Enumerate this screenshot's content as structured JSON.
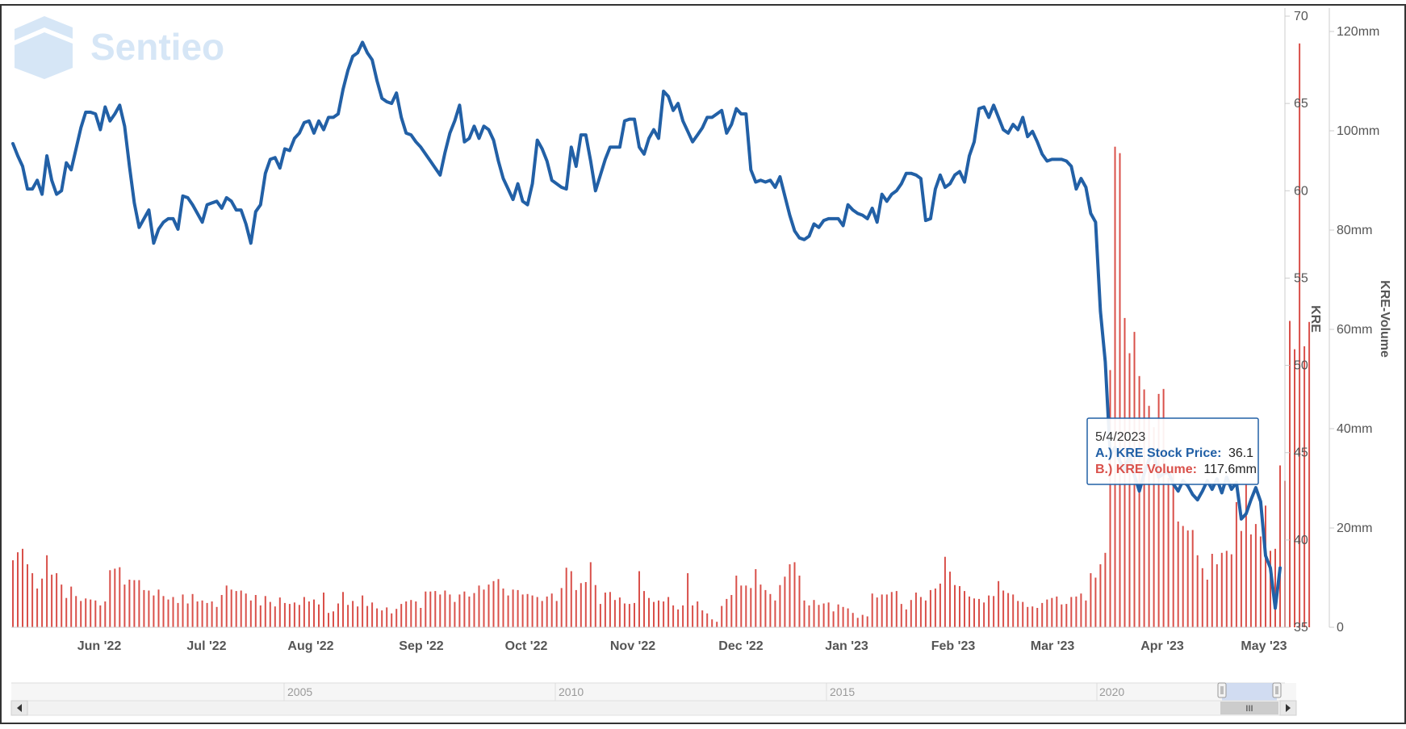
{
  "logo": {
    "text": "Sentieo"
  },
  "colors": {
    "price": "#2260a6",
    "volume": "#d9504a",
    "axis_text": "#555555",
    "grid": "#eeeeee",
    "nav_fill": "#c8d6f0",
    "logo": "#d6e6f6"
  },
  "tooltip": {
    "date": "5/4/2023",
    "a_label": "A.) KRE Stock Price:",
    "a_value": "36.1",
    "b_label": "B.) KRE Volume:",
    "b_value": "117.6mm"
  },
  "navigator": {
    "years": [
      "2005",
      "2010",
      "2015",
      "2020"
    ],
    "scroll_label": "III"
  },
  "chart_data": {
    "type": "line",
    "x_tick_labels": [
      "Jun '22",
      "Jul '22",
      "Aug '22",
      "Sep '22",
      "Oct '22",
      "Nov '22",
      "Dec '22",
      "Jan '23",
      "Feb '23",
      "Mar '23",
      "Apr '23",
      "May '23"
    ],
    "y_left": {
      "label": "KRE",
      "ticks": [
        "35",
        "40",
        "45",
        "50",
        "55",
        "60",
        "65",
        "70"
      ],
      "range": [
        35,
        70
      ]
    },
    "y_right": {
      "label": "KRE-Volume",
      "ticks": [
        "0",
        "20mm",
        "40mm",
        "60mm",
        "80mm",
        "100mm",
        "120mm"
      ],
      "range": [
        0,
        120
      ]
    },
    "series": [
      {
        "name": "A.) KRE Stock Price",
        "kind": "line",
        "values": [
          62.7,
          62.0,
          61.4,
          60.1,
          60.1,
          60.6,
          59.8,
          62.0,
          60.6,
          59.8,
          60.0,
          61.6,
          61.2,
          62.4,
          63.6,
          64.5,
          64.5,
          64.4,
          63.5,
          64.8,
          64.0,
          64.4,
          64.9,
          63.7,
          61.4,
          59.3,
          57.9,
          58.4,
          58.9,
          57.0,
          57.8,
          58.2,
          58.4,
          58.4,
          57.8,
          59.7,
          59.6,
          59.2,
          58.7,
          58.2,
          59.2,
          59.3,
          59.4,
          59.0,
          59.6,
          59.4,
          58.9,
          58.9,
          58.1,
          57.0,
          58.8,
          59.2,
          61.0,
          61.8,
          61.9,
          61.3,
          62.4,
          62.3,
          63.0,
          63.3,
          63.9,
          64.0,
          63.3,
          64.0,
          63.5,
          64.2,
          64.2,
          64.4,
          65.8,
          66.9,
          67.7,
          67.9,
          68.5,
          67.9,
          67.5,
          66.3,
          65.3,
          65.1,
          65.0,
          65.6,
          64.2,
          63.3,
          63.2,
          62.8,
          62.5,
          62.1,
          61.7,
          61.3,
          60.9,
          62.2,
          63.3,
          64.0,
          64.9,
          62.8,
          63.0,
          63.7,
          63.0,
          63.7,
          63.5,
          62.9,
          61.7,
          60.7,
          60.1,
          59.5,
          60.4,
          59.4,
          59.2,
          60.4,
          62.9,
          62.4,
          61.7,
          60.6,
          60.4,
          60.2,
          60.1,
          62.5,
          61.4,
          63.2,
          63.2,
          61.7,
          60.0,
          60.9,
          61.8,
          62.5,
          62.5,
          62.5,
          64.0,
          64.1,
          64.1,
          62.5,
          62.1,
          63.0,
          63.5,
          63.0,
          65.7,
          65.4,
          64.6,
          65.0,
          64.0,
          63.4,
          62.8,
          63.2,
          63.6,
          64.2,
          64.2,
          64.4,
          64.6,
          63.3,
          63.8,
          64.7,
          64.4,
          64.4,
          61.2,
          60.5,
          60.6,
          60.5,
          60.6,
          60.2,
          60.8,
          59.7,
          58.6,
          57.7,
          57.3,
          57.2,
          57.4,
          58.1,
          57.9,
          58.3,
          58.4,
          58.4,
          58.4,
          58.0,
          59.2,
          58.9,
          58.7,
          58.6,
          58.4,
          59.0,
          58.2,
          59.8,
          59.4,
          59.8,
          60.0,
          60.4,
          61.0,
          61.0,
          60.9,
          60.7,
          58.3,
          58.4,
          60.1,
          60.9,
          60.2,
          60.4,
          60.9,
          61.1,
          60.5,
          62.0,
          62.8,
          64.7,
          64.8,
          64.2,
          64.9,
          64.2,
          63.5,
          63.3,
          63.8,
          63.5,
          64.2,
          63.1,
          63.4,
          62.8,
          62.1,
          61.7,
          61.8,
          61.8,
          61.8,
          61.7,
          61.4,
          60.1,
          60.7,
          60.2,
          58.7,
          58.2,
          53.1,
          50.2,
          44.9,
          45.3,
          44.5,
          44.0,
          44.9,
          43.7,
          42.8,
          43.8,
          44.6,
          45.0,
          43.6,
          43.8,
          43.9,
          43.2,
          42.8,
          43.4,
          43.1,
          42.6,
          42.3,
          42.8,
          43.4,
          42.9,
          43.5,
          42.7,
          43.6,
          42.9,
          43.3,
          41.2,
          41.5,
          42.3,
          43.0,
          42.2,
          39.1,
          38.4,
          36.1,
          38.4
        ]
      },
      {
        "name": "B.) KRE Volume",
        "kind": "bar",
        "values": [
          13.5,
          15.1,
          15.8,
          12.7,
          10.9,
          7.8,
          9.8,
          14.5,
          10.6,
          10.9,
          8.6,
          5.9,
          8.2,
          6.3,
          5.3,
          5.8,
          5.6,
          5.4,
          4.4,
          5.2,
          11.5,
          11.8,
          12.1,
          8.6,
          9.6,
          9.5,
          9.5,
          7.5,
          7.4,
          6.4,
          7.6,
          6.3,
          5.6,
          6.1,
          4.9,
          6.6,
          4.8,
          6.7,
          5.2,
          5.4,
          4.9,
          5.2,
          4.1,
          6.5,
          8.4,
          7.6,
          7.3,
          7.4,
          6.8,
          5.4,
          6.5,
          4.4,
          6.3,
          5.1,
          4.2,
          6.0,
          4.9,
          4.7,
          5.0,
          4.5,
          6.1,
          5.2,
          5.6,
          4.6,
          7.0,
          2.9,
          3.2,
          4.8,
          7.1,
          4.5,
          5.3,
          4.2,
          6.4,
          4.3,
          5.0,
          3.8,
          3.4,
          4.0,
          2.8,
          3.7,
          4.7,
          5.2,
          5.5,
          5.2,
          3.9,
          7.2,
          7.2,
          7.3,
          6.6,
          7.4,
          6.6,
          5.1,
          6.6,
          7.2,
          6.2,
          6.9,
          8.4,
          7.6,
          8.6,
          9.3,
          9.7,
          7.8,
          6.4,
          7.6,
          7.5,
          6.6,
          6.7,
          6.4,
          6.1,
          5.3,
          6.2,
          6.8,
          5.3,
          7.9,
          12.0,
          11.3,
          7.5,
          8.9,
          9.1,
          13.1,
          8.5,
          4.7,
          7.0,
          7.1,
          5.5,
          6.0,
          4.8,
          4.7,
          4.9,
          11.3,
          7.3,
          5.9,
          5.1,
          5.4,
          5.2,
          6.1,
          4.4,
          3.6,
          4.4,
          10.9,
          4.4,
          5.2,
          3.4,
          2.8,
          1.6,
          1.1,
          4.3,
          5.7,
          6.5,
          10.4,
          8.4,
          8.4,
          7.9,
          11.7,
          8.6,
          7.5,
          6.7,
          5.4,
          8.5,
          10.2,
          12.7,
          13.1,
          10.4,
          5.4,
          4.4,
          5.5,
          4.5,
          4.8,
          5.0,
          3.2,
          4.6,
          4.1,
          3.8,
          2.9,
          1.9,
          2.5,
          2.2,
          6.8,
          6.0,
          6.6,
          6.6,
          7.1,
          7.3,
          4.7,
          3.6,
          5.5,
          7.0,
          6.1,
          5.4,
          7.5,
          7.8,
          8.8,
          14.2,
          11.2,
          8.5,
          8.3,
          7.3,
          6.2,
          5.8,
          5.7,
          5.0,
          6.4,
          6.3,
          9.3,
          7.4,
          6.9,
          6.6,
          5.3,
          5.1,
          4.1,
          4.2,
          3.9,
          4.9,
          5.6,
          5.9,
          6.2,
          4.6,
          4.7,
          6.1,
          6.2,
          6.8,
          5.4,
          10.9,
          10.0,
          12.7,
          15.0,
          51.8,
          96.8,
          95.5,
          62.3,
          55.2,
          59.5,
          50.6,
          47.9,
          44.6,
          40.3,
          47.0,
          48.0,
          30.1,
          31.3,
          21.3,
          20.4,
          19.5,
          19.6,
          14.5,
          11.9,
          9.6,
          14.8,
          12.7,
          15.0,
          15.4,
          14.7,
          25.2,
          19.4,
          28.8,
          18.7,
          20.8,
          18.3,
          24.5,
          15.4,
          15.8,
          32.6,
          29.5,
          61.7,
          56.0,
          117.6,
          56.6,
          61.5
        ]
      }
    ]
  }
}
